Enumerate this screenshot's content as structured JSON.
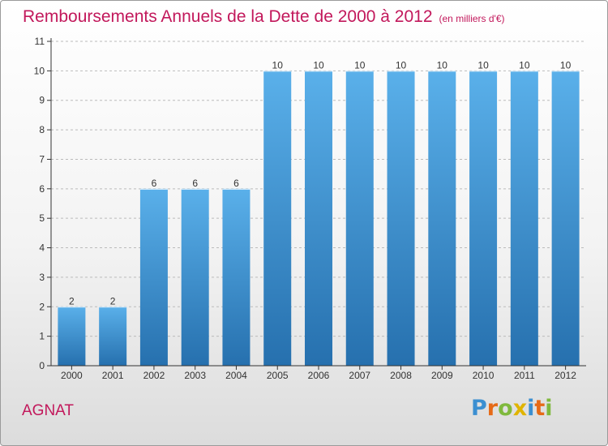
{
  "title": "Remboursements Annuels de la Dette de 2000 à 2012",
  "subtitle": "(en milliers d'€)",
  "location": "AGNAT",
  "logo": {
    "letters": [
      {
        "ch": "P",
        "color": "#3b8fd1"
      },
      {
        "ch": "r",
        "color": "#e66a17"
      },
      {
        "ch": "o",
        "color": "#7fb93d"
      },
      {
        "ch": "x",
        "color": "#e0b400"
      },
      {
        "ch": "i",
        "color": "#3b8fd1"
      },
      {
        "ch": "t",
        "color": "#e66a17"
      },
      {
        "ch": "i",
        "color": "#7fb93d"
      }
    ]
  },
  "colors": {
    "bar_top": "#5ab0ea",
    "bar_bottom": "#2670ae",
    "axis": "#333333",
    "grid": "#bbbbbb",
    "title": "#c2185b"
  },
  "chart_data": {
    "type": "bar",
    "title": "Remboursements Annuels de la Dette de 2000 à 2012",
    "subtitle": "(en milliers d'€)",
    "categories": [
      "2000",
      "2001",
      "2002",
      "2003",
      "2004",
      "2005",
      "2006",
      "2007",
      "2008",
      "2009",
      "2010",
      "2011",
      "2012"
    ],
    "values": [
      2,
      2,
      6,
      6,
      6,
      10,
      10,
      10,
      10,
      10,
      10,
      10,
      10
    ],
    "ylim": [
      0,
      11
    ],
    "yticks": [
      0,
      1,
      2,
      3,
      4,
      5,
      6,
      7,
      8,
      9,
      10,
      11
    ],
    "grid": "horizontal dashed",
    "legend": "none"
  }
}
